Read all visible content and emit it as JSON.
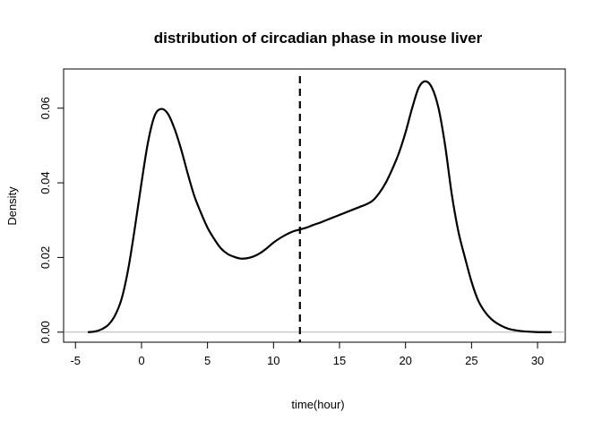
{
  "chart_data": {
    "type": "line",
    "title": "distribution of circadian phase in mouse liver",
    "xlabel": "time(hour)",
    "ylabel": "Density",
    "xlim": [
      -5.9,
      32.1
    ],
    "ylim": [
      -0.0027,
      0.0705
    ],
    "x_ticks": [
      -5,
      0,
      5,
      10,
      15,
      20,
      25,
      30
    ],
    "x_tick_labels": [
      "-5",
      "0",
      "5",
      "10",
      "15",
      "20",
      "25",
      "30"
    ],
    "y_ticks": [
      0.0,
      0.02,
      0.04,
      0.06
    ],
    "y_tick_labels": [
      "0.00",
      "0.02",
      "0.04",
      "0.06"
    ],
    "grid": false,
    "legend": "none",
    "baseline": 0,
    "series": [
      {
        "color": "#000000",
        "x": [
          -4.0,
          -3.5,
          -3.0,
          -2.5,
          -2.0,
          -1.5,
          -1.0,
          -0.5,
          0.0,
          0.5,
          1.0,
          1.5,
          2.0,
          2.5,
          3.0,
          3.5,
          4.0,
          4.5,
          5.0,
          5.5,
          6.0,
          6.5,
          7.0,
          7.5,
          8.0,
          8.5,
          9.0,
          9.5,
          10.0,
          10.5,
          11.0,
          11.5,
          12.0,
          12.5,
          13.0,
          13.5,
          14.0,
          14.5,
          15.0,
          15.5,
          16.0,
          16.5,
          17.0,
          17.5,
          18.0,
          18.5,
          19.0,
          19.5,
          20.0,
          20.5,
          21.0,
          21.5,
          22.0,
          22.5,
          23.0,
          23.5,
          24.0,
          24.5,
          25.0,
          25.5,
          26.0,
          26.5,
          27.0,
          27.5,
          28.0,
          28.5,
          29.0,
          29.5,
          30.0,
          31.0
        ],
        "y": [
          0.0,
          0.0002,
          0.0008,
          0.002,
          0.0045,
          0.009,
          0.017,
          0.028,
          0.04,
          0.051,
          0.058,
          0.0598,
          0.0585,
          0.0545,
          0.049,
          0.0425,
          0.0365,
          0.032,
          0.028,
          0.025,
          0.0225,
          0.021,
          0.0202,
          0.0197,
          0.0198,
          0.0203,
          0.0212,
          0.0225,
          0.024,
          0.0252,
          0.0262,
          0.027,
          0.0275,
          0.028,
          0.0287,
          0.0293,
          0.03,
          0.0307,
          0.0314,
          0.0321,
          0.0328,
          0.0335,
          0.0342,
          0.0352,
          0.0372,
          0.04,
          0.0437,
          0.048,
          0.0535,
          0.06,
          0.0655,
          0.0672,
          0.0655,
          0.06,
          0.05,
          0.037,
          0.027,
          0.02,
          0.0135,
          0.0085,
          0.0055,
          0.0035,
          0.0022,
          0.0013,
          0.0007,
          0.0004,
          0.0002,
          0.0001,
          0.0,
          0.0
        ]
      }
    ],
    "vertical_line": {
      "x": 12.0,
      "style": "dashed",
      "color": "#000000"
    }
  }
}
